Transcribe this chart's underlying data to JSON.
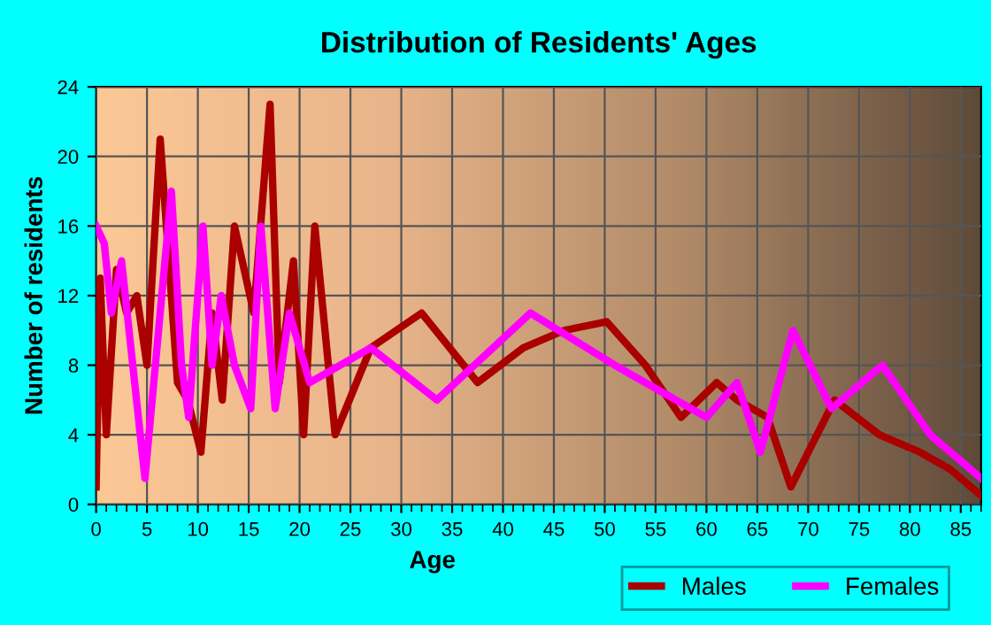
{
  "chart_data": {
    "type": "line",
    "title": "Distribution of Residents' Ages",
    "xlabel": "Age",
    "ylabel": "Number of residents",
    "xlim": [
      0,
      87
    ],
    "ylim": [
      0,
      24
    ],
    "xticks": [
      0,
      5,
      10,
      15,
      20,
      25,
      30,
      35,
      40,
      45,
      50,
      55,
      60,
      65,
      70,
      75,
      80,
      85
    ],
    "yticks": [
      0,
      4,
      8,
      12,
      16,
      20,
      24
    ],
    "grid": true,
    "legend": "bottom right",
    "series": [
      {
        "name": "Males",
        "color": "#aa0000",
        "x": [
          0,
          0.4,
          1,
          2,
          3,
          4,
          5,
          6.3,
          8,
          9,
          10.3,
          11.4,
          12.4,
          13.6,
          15.5,
          17.1,
          18,
          19.4,
          20.4,
          21.5,
          23.5,
          27,
          32,
          37.5,
          42,
          46,
          50.2,
          54,
          57.5,
          61,
          63,
          66,
          68.3,
          70,
          72.6,
          77,
          81,
          84,
          87
        ],
        "values": [
          1,
          13,
          4,
          13.5,
          11,
          12,
          8,
          21,
          7,
          6,
          3,
          11,
          6,
          16,
          11,
          23,
          7,
          14,
          4,
          16,
          4,
          9,
          11,
          7,
          9,
          10,
          10.5,
          8,
          5,
          7,
          6,
          5,
          1,
          3,
          6,
          4,
          3,
          2,
          0.5
        ]
      },
      {
        "name": "Females",
        "color": "#ff00ff",
        "x": [
          0,
          0.8,
          1.5,
          2.5,
          4.8,
          7.4,
          8.4,
          9.1,
          10.5,
          11.4,
          12.3,
          13.6,
          15.2,
          16.2,
          17.6,
          19,
          21,
          27,
          33.5,
          42.7,
          51,
          60,
          63,
          65.3,
          68.5,
          72.3,
          77.3,
          82,
          87
        ],
        "values": [
          16,
          15,
          11,
          14,
          1.5,
          18,
          8,
          5,
          16,
          8,
          12,
          8,
          5.5,
          16,
          5.5,
          11,
          7,
          9,
          6,
          11,
          8,
          5,
          7,
          3,
          10,
          5.5,
          8,
          4,
          1.5
        ]
      }
    ]
  }
}
